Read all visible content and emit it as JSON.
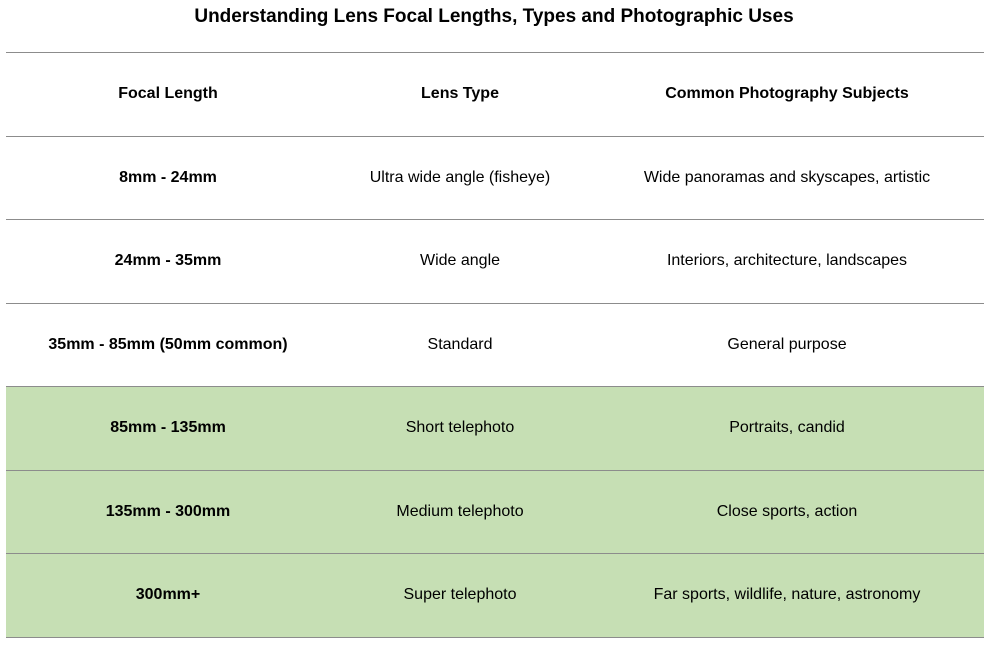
{
  "title": "Understanding Lens Focal Lengths, Types and Photographic Uses",
  "table": {
    "headers": [
      "Focal Length",
      "Lens Type",
      "Common Photography Subjects"
    ],
    "rows": [
      {
        "focal_length": "8mm - 24mm",
        "lens_type": "Ultra wide angle (fisheye)",
        "subjects": "Wide panoramas and skyscapes, artistic",
        "highlighted": false
      },
      {
        "focal_length": "24mm - 35mm",
        "lens_type": "Wide angle",
        "subjects": "Interiors, architecture, landscapes",
        "highlighted": false
      },
      {
        "focal_length": "35mm - 85mm (50mm common)",
        "lens_type": "Standard",
        "subjects": "General purpose",
        "highlighted": false
      },
      {
        "focal_length": "85mm - 135mm",
        "lens_type": "Short telephoto",
        "subjects": "Portraits, candid",
        "highlighted": true
      },
      {
        "focal_length": "135mm - 300mm",
        "lens_type": "Medium telephoto",
        "subjects": "Close sports, action",
        "highlighted": true
      },
      {
        "focal_length": "300mm+",
        "lens_type": "Super telephoto",
        "subjects": "Far sports, wildlife, nature, astronomy",
        "highlighted": true
      }
    ]
  },
  "colors": {
    "highlight_background": "#c6dfb4",
    "rule_color": "#8c8c8c"
  }
}
